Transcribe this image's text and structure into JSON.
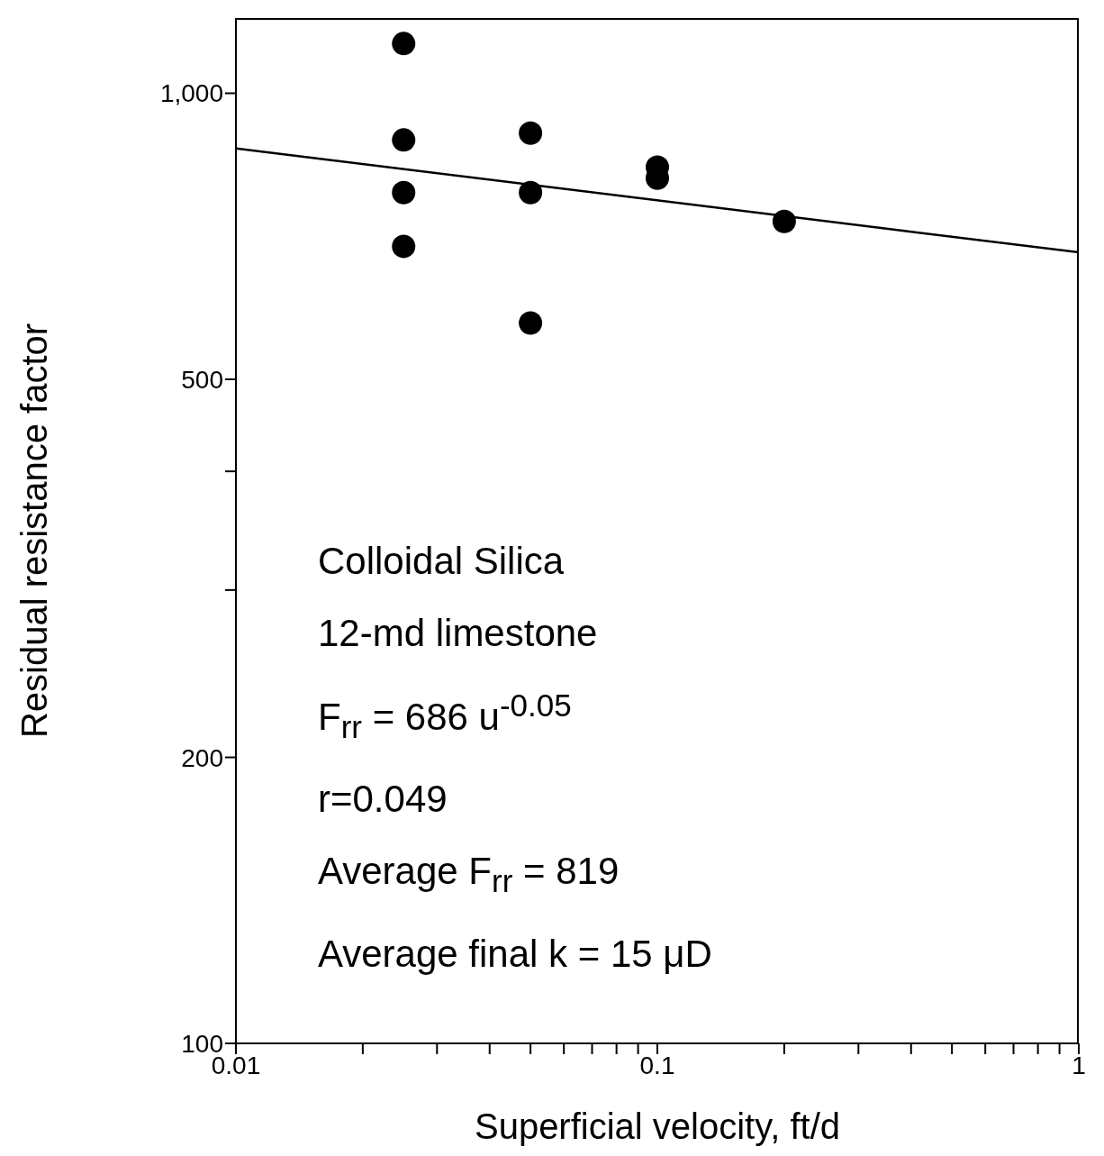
{
  "chart_data": {
    "type": "scatter",
    "xlabel": "Superficial velocity, ft/d",
    "ylabel": "Residual resistance factor",
    "log": "xy",
    "xlim": [
      0.01,
      1
    ],
    "ylim": [
      100,
      1200
    ],
    "xticks": [
      0.01,
      {
        "value": 0.02,
        "label": null
      },
      {
        "value": 0.03,
        "label": null
      },
      {
        "value": 0.04,
        "label": null
      },
      {
        "value": 0.05,
        "label": null
      },
      {
        "value": 0.06,
        "label": null
      },
      {
        "value": 0.07,
        "label": null
      },
      {
        "value": 0.08,
        "label": null
      },
      {
        "value": 0.09,
        "label": null
      },
      0.1,
      {
        "value": 0.2,
        "label": null
      },
      {
        "value": 0.3,
        "label": null
      },
      {
        "value": 0.4,
        "label": null
      },
      {
        "value": 0.5,
        "label": null
      },
      {
        "value": 0.6,
        "label": null
      },
      {
        "value": 0.7,
        "label": null
      },
      {
        "value": 0.8,
        "label": null
      },
      {
        "value": 0.9,
        "label": null
      },
      1
    ],
    "yticks": [
      100,
      200,
      {
        "value": 300,
        "label": null
      },
      {
        "value": 400,
        "label": null
      },
      500,
      {
        "value": 1000,
        "label": "1,000"
      }
    ],
    "marker": "circle",
    "series": [
      {
        "color": "#000000",
        "x": [
          0.025,
          0.025,
          0.025,
          0.025,
          0.05,
          0.05,
          0.05,
          0.1,
          0.1,
          0.2
        ],
        "values": [
          1128,
          893,
          786,
          690,
          908,
          786,
          573,
          836,
          814,
          733
        ]
      },
      {
        "type": "line",
        "color": "#000000",
        "line_style": "solid",
        "marker": "none",
        "x": [
          0.01,
          1
        ],
        "values": [
          875,
          680
        ]
      }
    ],
    "annotations": [
      "Colloidal Silica",
      "12-md limestone",
      "F$_{rr}$ = 686 u$^{-0.05}$",
      "r=0.049",
      "Average F$_{rr}$ = 819",
      "Average final k = 15 μD"
    ]
  }
}
